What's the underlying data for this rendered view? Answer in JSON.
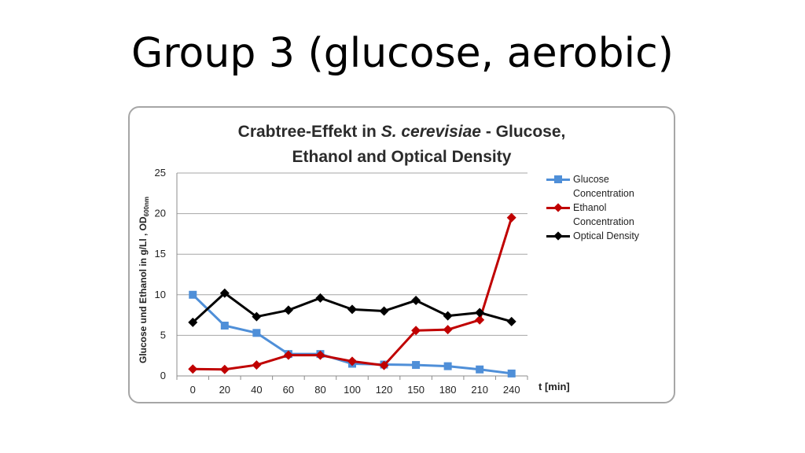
{
  "slide": {
    "title": "Group 3 (glucose, aerobic)"
  },
  "chart_data": {
    "type": "line",
    "title_line1_prefix": "Crabtree-Effekt in ",
    "title_line1_italic": "S. cerevisiae",
    "title_line1_suffix": " - Glucose,",
    "title_line2": "Ethanol and Optical Density",
    "xlabel": "t [min]",
    "ylabel_main": "Glucose und Ethanol in g/Ll , OD",
    "ylabel_sub": "600nm",
    "categories": [
      "0",
      "20",
      "40",
      "60",
      "80",
      "100",
      "120",
      "150",
      "180",
      "210",
      "240"
    ],
    "ylim": [
      0,
      25
    ],
    "yticks": [
      0,
      5,
      10,
      15,
      20,
      25
    ],
    "grid": true,
    "legend_position": "right",
    "series": [
      {
        "name_line1": "Glucose",
        "name_line2": "Concentration",
        "color": "#4f8fd8",
        "marker": "square",
        "values": [
          10.0,
          6.2,
          5.3,
          2.7,
          2.7,
          1.5,
          1.4,
          1.35,
          1.2,
          0.8,
          0.3
        ]
      },
      {
        "name_line1": "Ethanol",
        "name_line2": "Concentration",
        "color": "#c00000",
        "marker": "diamond",
        "values": [
          0.85,
          0.8,
          1.35,
          2.55,
          2.55,
          1.8,
          1.3,
          5.6,
          5.7,
          6.9,
          19.5
        ]
      },
      {
        "name_line1": "Optical Density",
        "name_line2": "",
        "color": "#000000",
        "marker": "diamond",
        "values": [
          6.6,
          10.2,
          7.3,
          8.1,
          9.6,
          8.2,
          8.0,
          9.3,
          7.4,
          7.8,
          6.7
        ]
      }
    ]
  }
}
